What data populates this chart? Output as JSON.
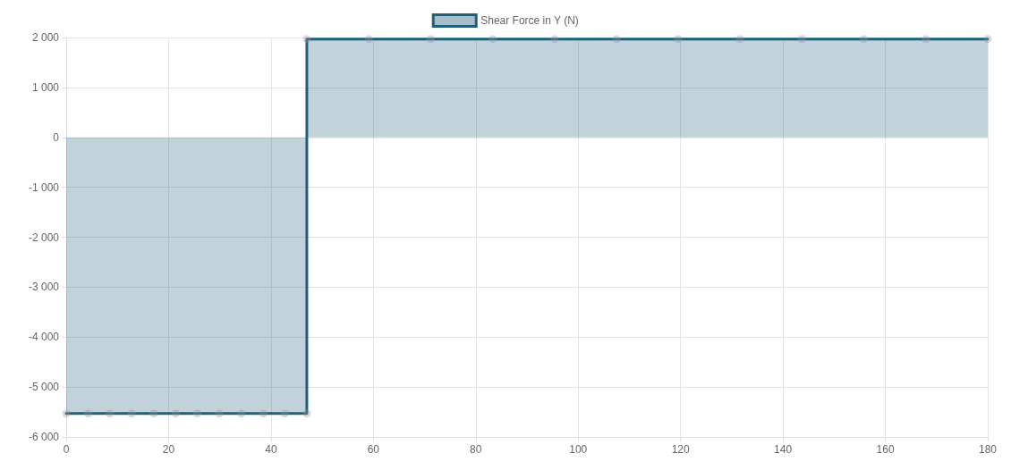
{
  "chart_data": {
    "type": "area",
    "x": [
      0,
      4.3,
      8.5,
      12.8,
      17.1,
      21.4,
      25.6,
      29.9,
      34.2,
      38.5,
      42.7,
      47,
      47,
      59.1,
      71.2,
      83.3,
      95.4,
      107.5,
      119.5,
      131.6,
      143.7,
      155.8,
      167.9,
      180
    ],
    "series": [
      {
        "name": "Shear Force in Y (N)",
        "color": "#1f5f7a",
        "values": [
          -5530,
          -5530,
          -5530,
          -5530,
          -5530,
          -5530,
          -5530,
          -5530,
          -5530,
          -5530,
          -5530,
          -5530,
          1970,
          1970,
          1970,
          1970,
          1970,
          1970,
          1970,
          1970,
          1970,
          1970,
          1970,
          1970
        ]
      }
    ],
    "xlim": [
      0,
      180
    ],
    "xticks": [
      0,
      20,
      40,
      60,
      80,
      100,
      120,
      140,
      160,
      180
    ],
    "ylim": [
      -6000,
      2000
    ],
    "yticks": [
      {
        "value": -6000,
        "label": "-6 000"
      },
      {
        "value": -5000,
        "label": "-5 000"
      },
      {
        "value": -4000,
        "label": "-4 000"
      },
      {
        "value": -3000,
        "label": "-3 000"
      },
      {
        "value": -2000,
        "label": "-2 000"
      },
      {
        "value": -1000,
        "label": "-1 000"
      },
      0,
      {
        "value": 1000,
        "label": "1 000"
      },
      {
        "value": 2000,
        "label": "2 000"
      }
    ],
    "grid": true,
    "legend": "top",
    "marker": "circle",
    "line_style": "solid"
  }
}
